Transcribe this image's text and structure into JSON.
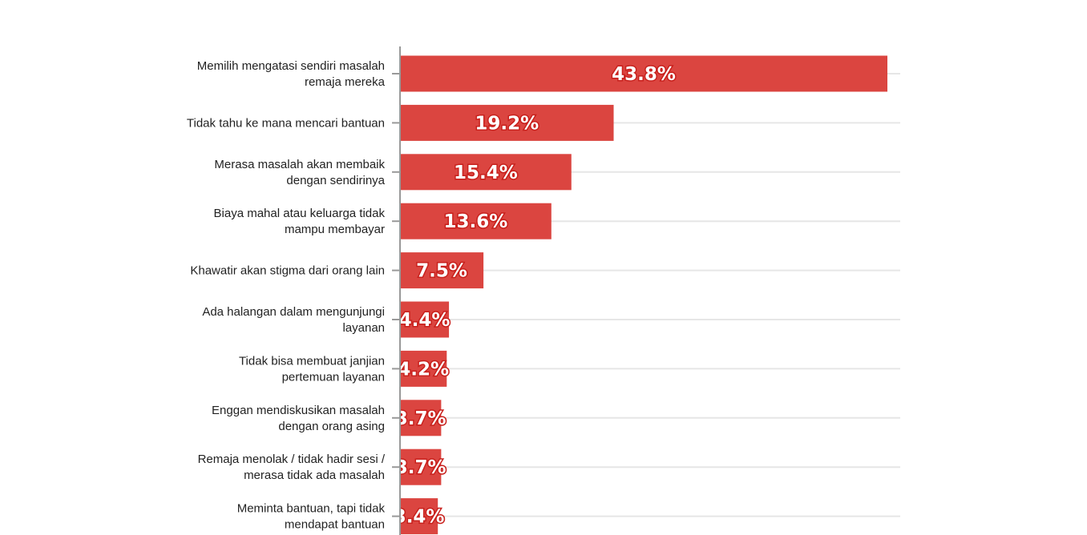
{
  "chart_data": {
    "type": "bar",
    "orientation": "horizontal",
    "categories": [
      [
        "Memilih mengatasi sendiri masalah",
        "remaja mereka"
      ],
      [
        "Tidak tahu ke mana mencari bantuan"
      ],
      [
        "Merasa masalah akan membaik",
        "dengan sendirinya"
      ],
      [
        "Biaya mahal atau keluarga tidak",
        "mampu membayar"
      ],
      [
        "Khawatir akan stigma dari orang lain"
      ],
      [
        "Ada halangan dalam mengunjungi",
        "layanan"
      ],
      [
        "Tidak bisa membuat janjian",
        "pertemuan layanan"
      ],
      [
        "Enggan mendiskusikan masalah",
        "dengan orang asing"
      ],
      [
        "Remaja menolak / tidak hadir sesi /",
        "merasa tidak ada masalah"
      ],
      [
        "Meminta bantuan, tapi tidak",
        "mendapat bantuan"
      ]
    ],
    "values": [
      43.8,
      19.2,
      15.4,
      13.6,
      7.5,
      4.4,
      4.2,
      3.7,
      3.7,
      3.4
    ],
    "data_labels": [
      "43.8%",
      "19.2%",
      "15.4%",
      "13.6%",
      "7.5%",
      "4.4%",
      "4.2%",
      "3.7%",
      "3.7%",
      "3.4%"
    ],
    "xlim": [
      0,
      45
    ],
    "grid": true,
    "bar_color": "#db4540",
    "label_stroke_color": "#c8201c"
  }
}
